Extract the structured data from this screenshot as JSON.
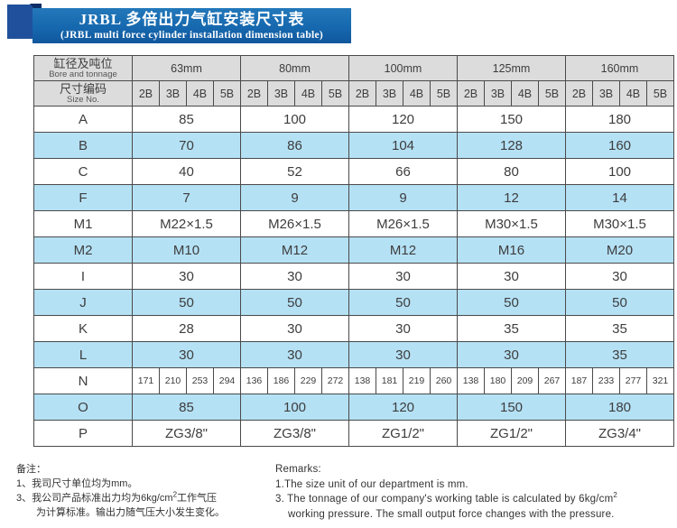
{
  "header": {
    "title": "JRBL 多倍出力气缸安装尺寸表",
    "subtitle": "(JRBL multi force cylinder installation dimension table)"
  },
  "table": {
    "corner_bore_zh": "缸径及吨位",
    "corner_bore_en": "Bore and tonnage",
    "corner_size_zh": "尺寸编码",
    "corner_size_en": "Size No.",
    "bore_groups": [
      "63mm",
      "80mm",
      "100mm",
      "125mm",
      "160mm"
    ],
    "size_codes": [
      "2B",
      "3B",
      "4B",
      "5B"
    ],
    "rows": [
      {
        "label": "A",
        "type": "merged",
        "shaded": false,
        "values": [
          "85",
          "100",
          "120",
          "150",
          "180"
        ]
      },
      {
        "label": "B",
        "type": "merged",
        "shaded": true,
        "values": [
          "70",
          "86",
          "104",
          "128",
          "160"
        ]
      },
      {
        "label": "C",
        "type": "merged",
        "shaded": false,
        "values": [
          "40",
          "52",
          "66",
          "80",
          "100"
        ]
      },
      {
        "label": "F",
        "type": "merged",
        "shaded": true,
        "values": [
          "7",
          "9",
          "9",
          "12",
          "14"
        ]
      },
      {
        "label": "M1",
        "type": "merged",
        "shaded": false,
        "values": [
          "M22×1.5",
          "M26×1.5",
          "M26×1.5",
          "M30×1.5",
          "M30×1.5"
        ]
      },
      {
        "label": "M2",
        "type": "merged",
        "shaded": true,
        "values": [
          "M10",
          "M12",
          "M12",
          "M16",
          "M20"
        ]
      },
      {
        "label": "I",
        "type": "merged",
        "shaded": false,
        "values": [
          "30",
          "30",
          "30",
          "30",
          "30"
        ]
      },
      {
        "label": "J",
        "type": "merged",
        "shaded": true,
        "values": [
          "50",
          "50",
          "50",
          "50",
          "50"
        ]
      },
      {
        "label": "K",
        "type": "merged",
        "shaded": false,
        "values": [
          "28",
          "30",
          "30",
          "35",
          "35"
        ]
      },
      {
        "label": "L",
        "type": "merged",
        "shaded": true,
        "values": [
          "30",
          "30",
          "30",
          "30",
          "35"
        ]
      },
      {
        "label": "N",
        "type": "per-code",
        "shaded": false,
        "values": [
          [
            "171",
            "210",
            "253",
            "294"
          ],
          [
            "136",
            "186",
            "229",
            "272"
          ],
          [
            "138",
            "181",
            "219",
            "260"
          ],
          [
            "138",
            "180",
            "209",
            "267"
          ],
          [
            "187",
            "233",
            "277",
            "321"
          ]
        ]
      },
      {
        "label": "O",
        "type": "merged",
        "shaded": true,
        "values": [
          "85",
          "100",
          "120",
          "150",
          "180"
        ]
      },
      {
        "label": "P",
        "type": "merged",
        "shaded": false,
        "values": [
          "ZG3/8\"",
          "ZG3/8\"",
          "ZG1/2\"",
          "ZG1/2\"",
          "ZG3/4\""
        ]
      }
    ]
  },
  "notes_zh": {
    "heading": "备注：",
    "line1": "1、我司尺寸单位均为mm。",
    "line2_pre": "3、我公司产品标准出力均为6kg/cm",
    "line2_sup": "2",
    "line2_post": "工作气压",
    "line3": "为计算标准。输出力随气压大小发生变化。"
  },
  "notes_en": {
    "heading": "Remarks:",
    "line1": "1.The size unit of our department is mm.",
    "line2_pre": "3. The tonnage of our company's working table is calculated by 6kg/cm",
    "line2_sup": "2",
    "line3": "working pressure. The small output force changes with the pressure."
  },
  "colors": {
    "banner_blue": "#1668ae",
    "square_blue": "#20509b",
    "fold_navy": "#0c2d66",
    "header_gray": "#dcdcdc",
    "row_blue": "#b5e1f5",
    "border": "#4a4a4a"
  }
}
